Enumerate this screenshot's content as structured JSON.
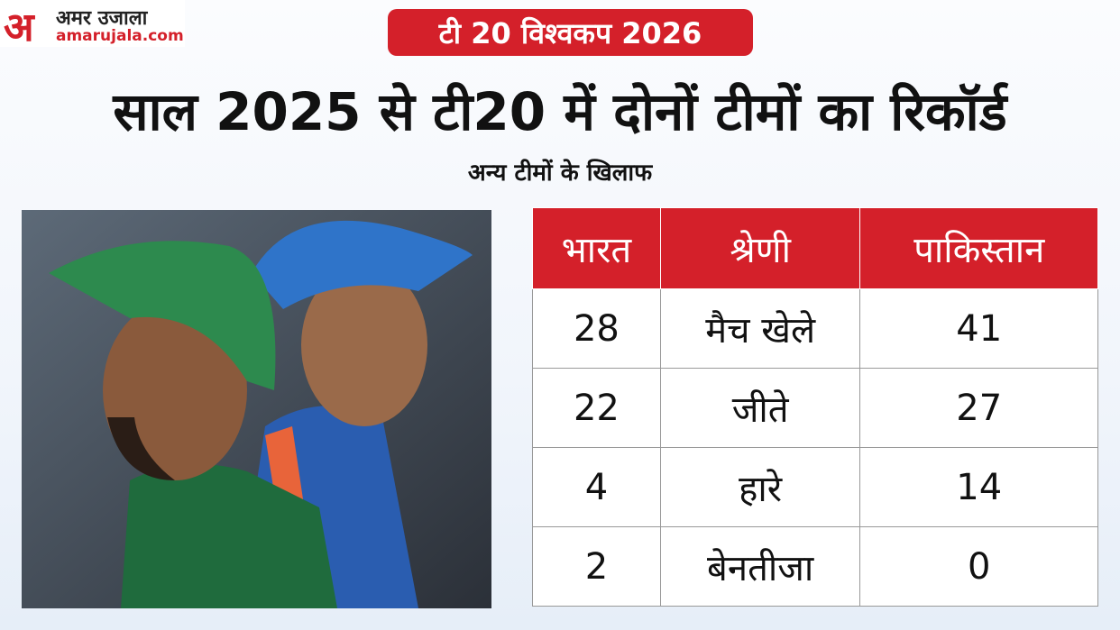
{
  "logo": {
    "mark": "अ",
    "name": "अमर उजाला",
    "site": "amarujala.com"
  },
  "badge": "टी 20 विश्वकप 2026",
  "title": "साल 2025 से टी20 में दोनों टीमों का रिकॉर्ड",
  "subtitle": "अन्य टीमों के खिलाफ",
  "table": {
    "header": [
      "भारत",
      "श्रेणी",
      "पाकिस्तान"
    ],
    "rows": [
      [
        28,
        "मैच खेले",
        41
      ],
      [
        22,
        "जीते",
        27
      ],
      [
        4,
        "हारे",
        14
      ],
      [
        2,
        "बेनतीजा",
        0
      ]
    ]
  }
}
